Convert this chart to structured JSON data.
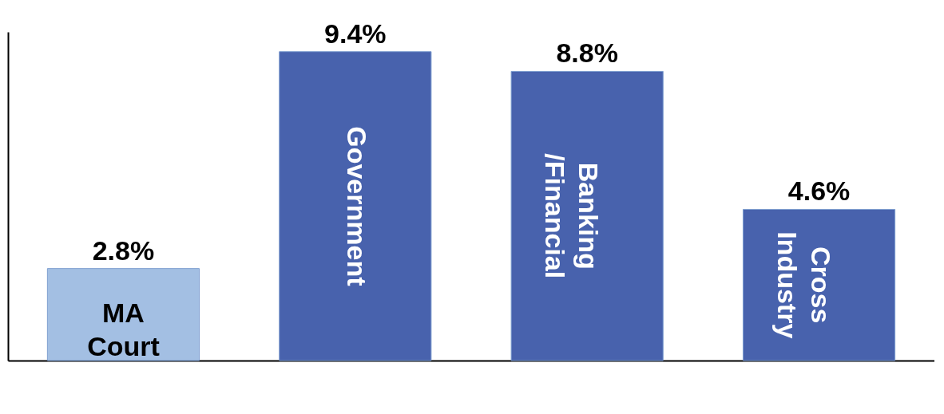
{
  "chart_data": {
    "type": "bar",
    "categories": [
      "MA Court",
      "Government",
      "Banking /Financial",
      "Cross Industry"
    ],
    "values": [
      2.8,
      9.4,
      8.8,
      4.6
    ],
    "value_labels": [
      "2.8%",
      "9.4%",
      "8.8%",
      "4.6%"
    ],
    "colors": [
      "#a3bfe3",
      "#4862ad",
      "#4862ad",
      "#4862ad"
    ],
    "ylim": [
      0,
      10
    ]
  }
}
